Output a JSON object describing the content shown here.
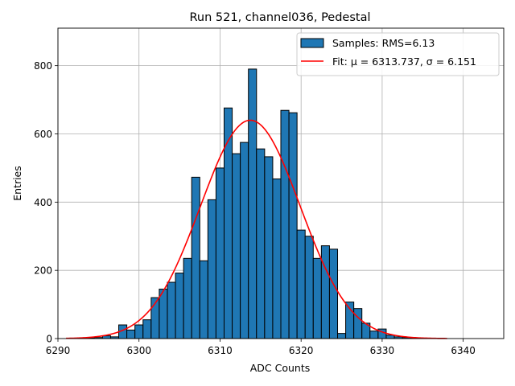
{
  "chart_data": {
    "type": "bar",
    "title": "Run 521, channel036, Pedestal",
    "xlabel": "ADC Counts",
    "ylabel": "Entries",
    "xlim": [
      6290,
      6345
    ],
    "ylim": [
      0,
      910
    ],
    "grid": true,
    "legend_position": "top-right",
    "xticks": [
      6290,
      6300,
      6310,
      6320,
      6330,
      6340
    ],
    "yticks": [
      0,
      200,
      400,
      600,
      800
    ],
    "bin_width": 1,
    "bins": {
      "x": [
        6291,
        6292,
        6293,
        6294,
        6295,
        6296,
        6297,
        6298,
        6299,
        6300,
        6301,
        6302,
        6303,
        6304,
        6305,
        6306,
        6307,
        6308,
        6309,
        6310,
        6311,
        6312,
        6313,
        6314,
        6315,
        6316,
        6317,
        6318,
        6319,
        6320,
        6321,
        6322,
        6323,
        6324,
        6325,
        6326,
        6327,
        6328,
        6329,
        6330,
        6331,
        6332,
        6333,
        6334,
        6335,
        6336,
        6337
      ],
      "values": [
        0,
        0,
        1,
        2,
        3,
        8,
        5,
        40,
        25,
        40,
        55,
        120,
        145,
        165,
        192,
        235,
        473,
        228,
        407,
        500,
        676,
        542,
        575,
        790,
        556,
        533,
        468,
        669,
        662,
        318,
        300,
        235,
        272,
        262,
        15,
        107,
        88,
        45,
        22,
        28,
        10,
        5,
        3,
        2,
        1,
        0,
        0
      ]
    },
    "fit": {
      "mu": 6313.737,
      "sigma": 6.151,
      "peak": 640,
      "x_range": [
        6291,
        6338
      ]
    },
    "series": [
      {
        "name": "Samples: RMS=6.13",
        "color": "#1f77b4"
      },
      {
        "name": "Fit: μ = 6313.737, σ = 6.151",
        "color": "#ff0000"
      }
    ]
  }
}
